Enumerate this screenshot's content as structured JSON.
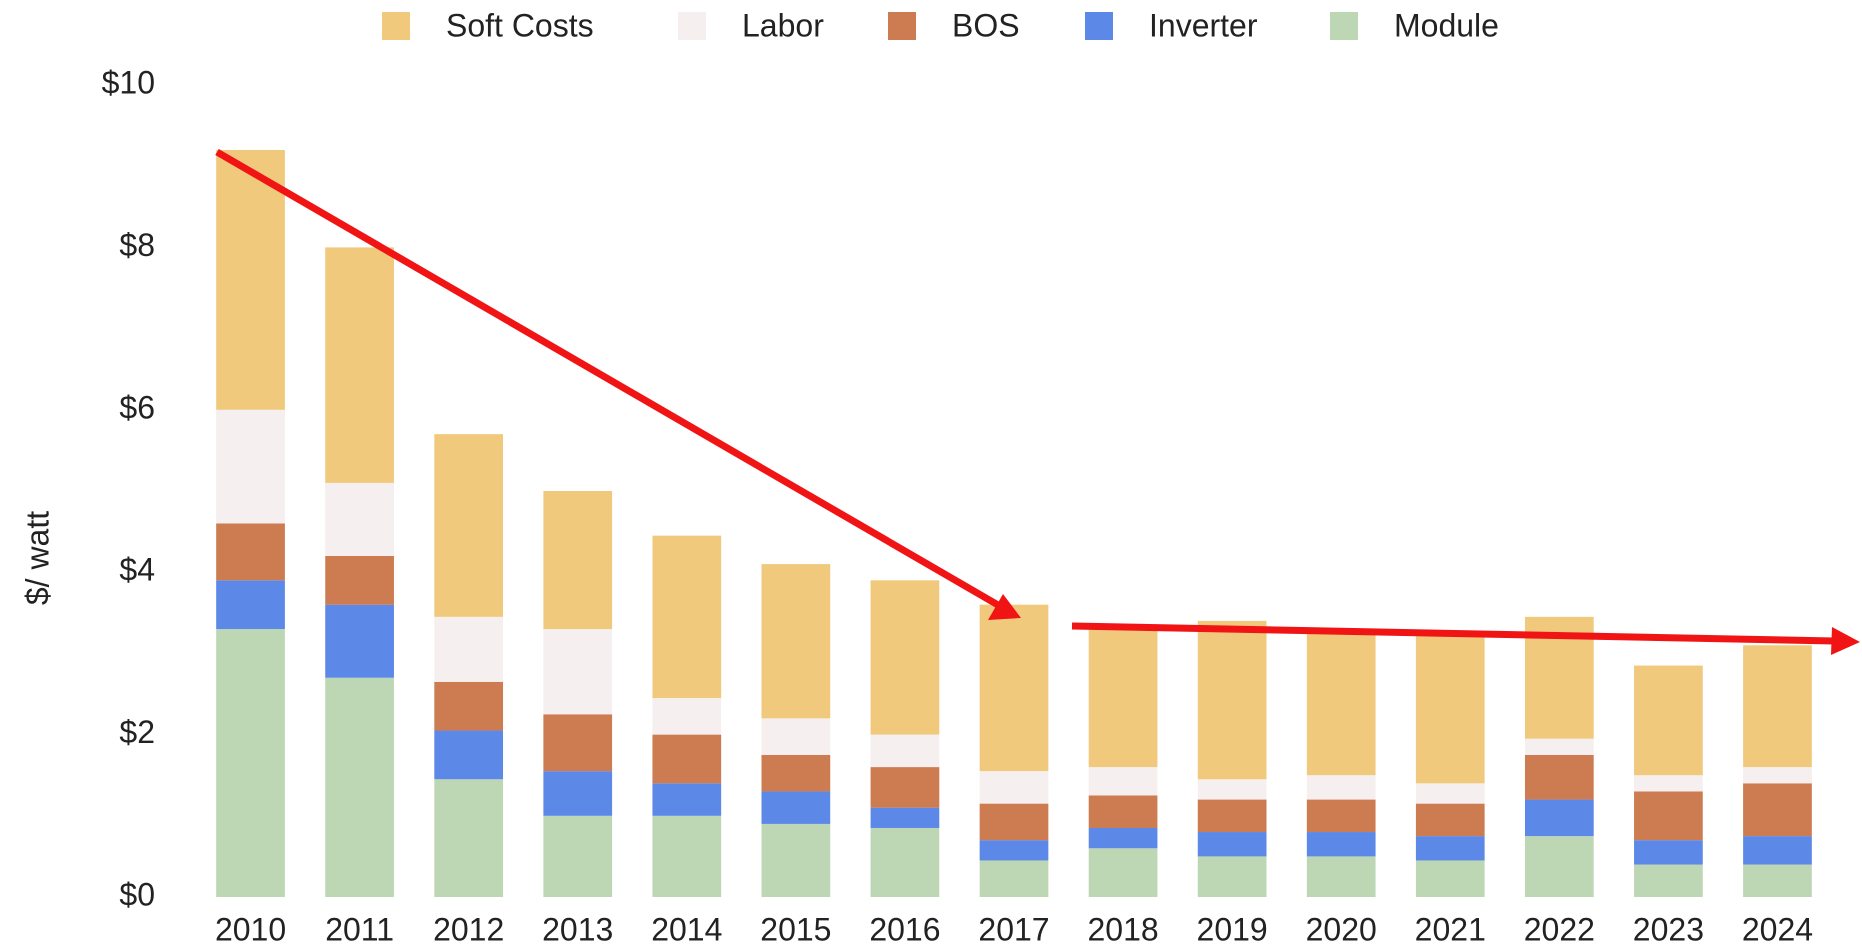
{
  "chart_data": {
    "type": "stacked_bar",
    "y_axis_label": "$/ watt",
    "categories": [
      "2010",
      "2011",
      "2012",
      "2013",
      "2014",
      "2015",
      "2016",
      "2017",
      "2018",
      "2019",
      "2020",
      "2021",
      "2022",
      "2023",
      "2024"
    ],
    "series": [
      {
        "name": "Soft Costs",
        "color": "#f1c97c",
        "values": [
          3.2,
          2.9,
          2.25,
          1.7,
          2.0,
          1.9,
          1.9,
          2.05,
          1.75,
          1.95,
          1.8,
          1.85,
          1.5,
          1.35,
          1.5
        ]
      },
      {
        "name": "Labor",
        "color": "#f5efef",
        "values": [
          1.4,
          0.9,
          0.8,
          1.05,
          0.45,
          0.45,
          0.4,
          0.4,
          0.35,
          0.25,
          0.3,
          0.25,
          0.2,
          0.2,
          0.2
        ]
      },
      {
        "name": "BOS",
        "color": "#cd7b50",
        "values": [
          0.7,
          0.6,
          0.6,
          0.7,
          0.6,
          0.45,
          0.5,
          0.45,
          0.4,
          0.4,
          0.4,
          0.4,
          0.55,
          0.6,
          0.65
        ]
      },
      {
        "name": "Inverter",
        "color": "#5c88e8",
        "values": [
          0.6,
          0.9,
          0.6,
          0.55,
          0.4,
          0.4,
          0.25,
          0.25,
          0.25,
          0.3,
          0.3,
          0.3,
          0.45,
          0.3,
          0.35
        ]
      },
      {
        "name": "Module",
        "color": "#bdd7b5",
        "values": [
          3.3,
          2.7,
          1.45,
          1.0,
          1.0,
          0.9,
          0.85,
          0.45,
          0.6,
          0.5,
          0.5,
          0.45,
          0.75,
          0.4,
          0.4
        ]
      }
    ],
    "ylim": [
      0,
      10
    ],
    "yticks": [
      {
        "value": 0,
        "label": "$0"
      },
      {
        "value": 2,
        "label": "$2"
      },
      {
        "value": 4,
        "label": "$4"
      },
      {
        "value": 6,
        "label": "$6"
      },
      {
        "value": 8,
        "label": "$8"
      },
      {
        "value": 10,
        "label": "$10"
      }
    ],
    "grid": false,
    "legend": "top"
  }
}
